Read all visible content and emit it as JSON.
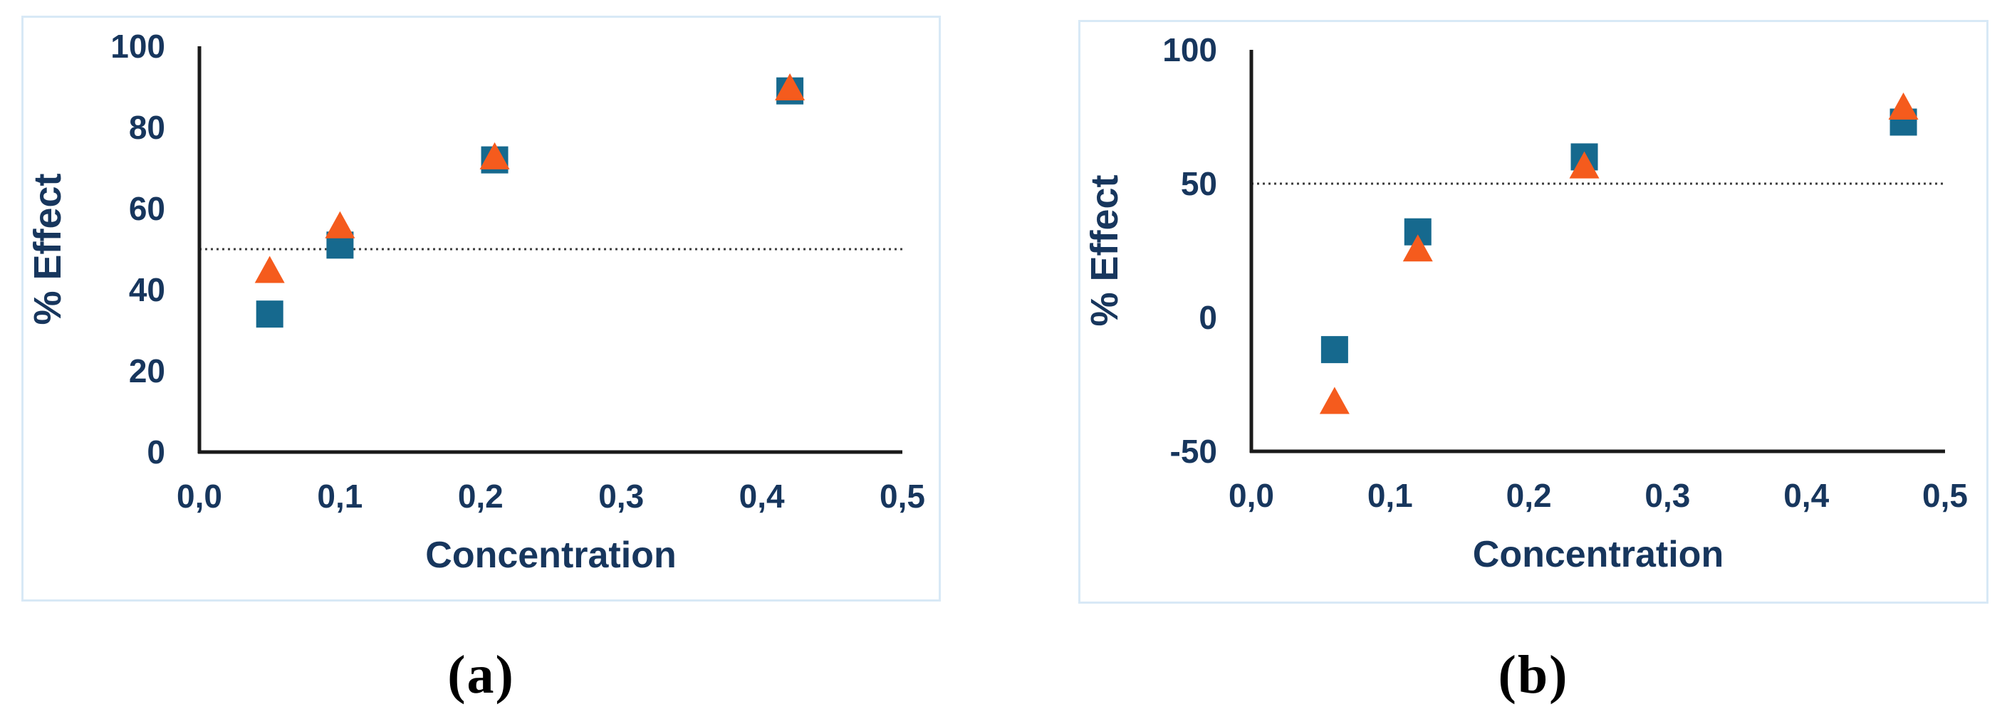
{
  "colors": {
    "square_series": "#16698E",
    "triangle_series": "#F55B1D",
    "axis_line": "#1A1A1A",
    "tick_text": "#17365D",
    "axis_title_text": "#17365D",
    "reference_line": "#3C3C3C",
    "panel_border": "#D8E9F6",
    "caption_text": "#000000"
  },
  "chart_data": [
    {
      "type": "scatter",
      "caption": "(a)",
      "xlabel": "Concentration",
      "ylabel": "% Effect",
      "xlim": [
        0,
        0.5
      ],
      "ylim": [
        0,
        100
      ],
      "x_tick_values": [
        0,
        0.1,
        0.2,
        0.3,
        0.4,
        0.5
      ],
      "x_tick_labels": [
        "0,0",
        "0,1",
        "0,2",
        "0,3",
        "0,4",
        "0,5"
      ],
      "y_tick_values": [
        0,
        20,
        40,
        60,
        80,
        100
      ],
      "y_tick_labels": [
        "0",
        "20",
        "40",
        "60",
        "80",
        "100"
      ],
      "reference_line_y": 50,
      "grid": false,
      "legend": "none",
      "series": [
        {
          "name": "square-series",
          "marker": "square",
          "color": "#16698E",
          "points": [
            [
              0.05,
              34
            ],
            [
              0.1,
              51
            ],
            [
              0.21,
              72
            ],
            [
              0.42,
              89
            ]
          ]
        },
        {
          "name": "triangle-series",
          "marker": "triangle",
          "color": "#F55B1D",
          "points": [
            [
              0.05,
              45
            ],
            [
              0.1,
              56
            ],
            [
              0.21,
              73
            ],
            [
              0.42,
              90
            ]
          ]
        }
      ]
    },
    {
      "type": "scatter",
      "caption": "(b)",
      "xlabel": "Concentration",
      "ylabel": "% Effect",
      "xlim": [
        0,
        0.5
      ],
      "ylim": [
        -50,
        100
      ],
      "x_tick_values": [
        0,
        0.1,
        0.2,
        0.3,
        0.4,
        0.5
      ],
      "x_tick_labels": [
        "0,0",
        "0,1",
        "0,2",
        "0,3",
        "0,4",
        "0,5"
      ],
      "y_tick_values": [
        -50,
        0,
        50,
        100
      ],
      "y_tick_labels": [
        "-50",
        "0",
        "50",
        "100"
      ],
      "reference_line_y": 50,
      "grid": false,
      "legend": "none",
      "series": [
        {
          "name": "square-series",
          "marker": "square",
          "color": "#16698E",
          "points": [
            [
              0.06,
              -12
            ],
            [
              0.12,
              32
            ],
            [
              0.24,
              60
            ],
            [
              0.47,
              73
            ]
          ]
        },
        {
          "name": "triangle-series",
          "marker": "triangle",
          "color": "#F55B1D",
          "points": [
            [
              0.06,
              -31
            ],
            [
              0.12,
              26
            ],
            [
              0.24,
              57
            ],
            [
              0.47,
              79
            ]
          ]
        }
      ]
    }
  ]
}
